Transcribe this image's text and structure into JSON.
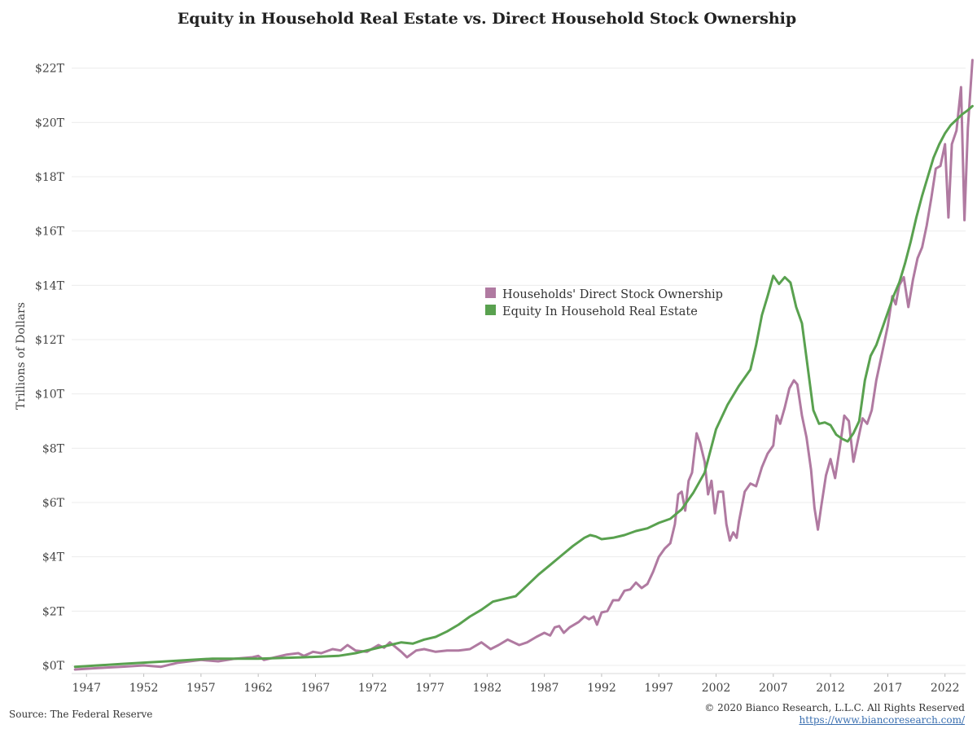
{
  "title": "Equity in Household Real Estate vs. Direct Household Stock Ownership",
  "source": "Source: The Federal Reserve",
  "copyright": "© 2020 Bianco Research, L.L.C. All Rights Reserved",
  "website": "https://www.biancoresearch.com/",
  "colors": {
    "stock": "#b07aa1",
    "real_estate": "#59a14f",
    "grid": "#ececec"
  },
  "chart_data": {
    "type": "line",
    "title": "Equity in Household Real Estate vs. Direct Household Stock Ownership",
    "xlabel": "",
    "ylabel": "Trillions of Dollars",
    "x_ticks": [
      1947,
      1952,
      1957,
      1962,
      1967,
      1972,
      1977,
      1982,
      1987,
      1992,
      1997,
      2002,
      2007,
      2012,
      2017,
      2022
    ],
    "y_ticks": [
      "$0T",
      "$2T",
      "$4T",
      "$6T",
      "$8T",
      "$10T",
      "$12T",
      "$14T",
      "$16T",
      "$18T",
      "$20T",
      "$22T"
    ],
    "xlim": [
      1945.7,
      2023.8
    ],
    "ylim": [
      -0.3,
      23.1
    ],
    "grid": "horizontal",
    "legend_position": "center",
    "series": [
      {
        "name": "Households' Direct Stock Ownership",
        "color": "#b07aa1",
        "points": [
          [
            1946.0,
            -0.15
          ],
          [
            1948.0,
            -0.1
          ],
          [
            1950.0,
            -0.05
          ],
          [
            1952.0,
            0.0
          ],
          [
            1953.5,
            -0.05
          ],
          [
            1955.0,
            0.1
          ],
          [
            1957.0,
            0.2
          ],
          [
            1958.5,
            0.15
          ],
          [
            1960.0,
            0.25
          ],
          [
            1961.5,
            0.3
          ],
          [
            1962.0,
            0.35
          ],
          [
            1962.5,
            0.2
          ],
          [
            1963.5,
            0.3
          ],
          [
            1964.5,
            0.4
          ],
          [
            1965.5,
            0.45
          ],
          [
            1966.0,
            0.35
          ],
          [
            1966.8,
            0.5
          ],
          [
            1967.5,
            0.45
          ],
          [
            1968.5,
            0.6
          ],
          [
            1969.2,
            0.55
          ],
          [
            1969.8,
            0.75
          ],
          [
            1970.5,
            0.55
          ],
          [
            1971.5,
            0.5
          ],
          [
            1972.5,
            0.75
          ],
          [
            1973.0,
            0.65
          ],
          [
            1973.5,
            0.85
          ],
          [
            1974.5,
            0.5
          ],
          [
            1975.0,
            0.3
          ],
          [
            1975.8,
            0.55
          ],
          [
            1976.5,
            0.6
          ],
          [
            1977.5,
            0.5
          ],
          [
            1978.5,
            0.55
          ],
          [
            1979.5,
            0.55
          ],
          [
            1980.5,
            0.6
          ],
          [
            1981.5,
            0.85
          ],
          [
            1982.3,
            0.6
          ],
          [
            1983.0,
            0.75
          ],
          [
            1983.8,
            0.95
          ],
          [
            1984.8,
            0.75
          ],
          [
            1985.5,
            0.85
          ],
          [
            1986.3,
            1.05
          ],
          [
            1987.0,
            1.2
          ],
          [
            1987.5,
            1.1
          ],
          [
            1987.9,
            1.4
          ],
          [
            1988.3,
            1.45
          ],
          [
            1988.7,
            1.2
          ],
          [
            1989.2,
            1.4
          ],
          [
            1990.0,
            1.6
          ],
          [
            1990.5,
            1.8
          ],
          [
            1990.9,
            1.7
          ],
          [
            1991.3,
            1.8
          ],
          [
            1991.6,
            1.5
          ],
          [
            1992.0,
            1.95
          ],
          [
            1992.5,
            2.0
          ],
          [
            1993.0,
            2.4
          ],
          [
            1993.5,
            2.4
          ],
          [
            1994.0,
            2.75
          ],
          [
            1994.5,
            2.8
          ],
          [
            1995.0,
            3.05
          ],
          [
            1995.5,
            2.85
          ],
          [
            1996.0,
            3.0
          ],
          [
            1996.5,
            3.45
          ],
          [
            1997.0,
            4.0
          ],
          [
            1997.5,
            4.3
          ],
          [
            1998.0,
            4.5
          ],
          [
            1998.4,
            5.2
          ],
          [
            1998.7,
            6.3
          ],
          [
            1999.0,
            6.4
          ],
          [
            1999.3,
            5.7
          ],
          [
            1999.6,
            6.8
          ],
          [
            1999.9,
            7.1
          ],
          [
            2000.3,
            8.55
          ],
          [
            2000.6,
            8.2
          ],
          [
            2001.0,
            7.5
          ],
          [
            2001.3,
            6.3
          ],
          [
            2001.6,
            6.8
          ],
          [
            2001.9,
            5.6
          ],
          [
            2002.2,
            6.4
          ],
          [
            2002.6,
            6.4
          ],
          [
            2002.9,
            5.2
          ],
          [
            2003.2,
            4.6
          ],
          [
            2003.5,
            4.9
          ],
          [
            2003.8,
            4.7
          ],
          [
            2004.0,
            5.3
          ],
          [
            2004.5,
            6.4
          ],
          [
            2005.0,
            6.7
          ],
          [
            2005.5,
            6.6
          ],
          [
            2006.0,
            7.3
          ],
          [
            2006.5,
            7.8
          ],
          [
            2007.0,
            8.1
          ],
          [
            2007.3,
            9.2
          ],
          [
            2007.6,
            8.9
          ],
          [
            2008.0,
            9.5
          ],
          [
            2008.4,
            10.2
          ],
          [
            2008.8,
            10.5
          ],
          [
            2009.1,
            10.35
          ],
          [
            2009.5,
            9.2
          ],
          [
            2009.9,
            8.4
          ],
          [
            2010.3,
            7.2
          ],
          [
            2010.6,
            5.8
          ],
          [
            2010.9,
            5.0
          ],
          [
            2011.2,
            5.9
          ],
          [
            2011.6,
            7.0
          ],
          [
            2012.0,
            7.6
          ],
          [
            2012.4,
            6.9
          ],
          [
            2012.8,
            8.0
          ],
          [
            2013.2,
            9.2
          ],
          [
            2013.6,
            9.0
          ],
          [
            2014.0,
            7.5
          ],
          [
            2014.4,
            8.3
          ],
          [
            2014.8,
            9.1
          ],
          [
            2015.2,
            8.9
          ],
          [
            2015.6,
            9.4
          ],
          [
            2016.0,
            10.5
          ],
          [
            2016.5,
            11.5
          ],
          [
            2017.0,
            12.5
          ],
          [
            2017.4,
            13.6
          ],
          [
            2017.7,
            13.3
          ],
          [
            2018.0,
            14.0
          ],
          [
            2018.4,
            14.3
          ],
          [
            2018.8,
            13.2
          ],
          [
            2019.2,
            14.2
          ],
          [
            2019.6,
            15.0
          ],
          [
            2020.0,
            15.4
          ],
          [
            2020.4,
            16.2
          ],
          [
            2020.8,
            17.2
          ],
          [
            2021.2,
            18.3
          ],
          [
            2021.6,
            18.4
          ],
          [
            2022.0,
            19.2
          ],
          [
            2022.3,
            16.5
          ],
          [
            2022.6,
            19.2
          ],
          [
            2023.0,
            19.7
          ],
          [
            2023.4,
            21.3
          ],
          [
            2023.7,
            16.4
          ],
          [
            2024.0,
            19.8
          ],
          [
            2024.4,
            22.3
          ]
        ]
      },
      {
        "name": "Equity In Household Real Estate",
        "color": "#59a14f",
        "points": [
          [
            1946.0,
            -0.05
          ],
          [
            1950.0,
            0.05
          ],
          [
            1954.0,
            0.15
          ],
          [
            1958.0,
            0.25
          ],
          [
            1962.0,
            0.25
          ],
          [
            1966.0,
            0.3
          ],
          [
            1969.0,
            0.35
          ],
          [
            1970.5,
            0.45
          ],
          [
            1972.0,
            0.6
          ],
          [
            1973.5,
            0.75
          ],
          [
            1974.5,
            0.85
          ],
          [
            1975.5,
            0.8
          ],
          [
            1976.5,
            0.95
          ],
          [
            1977.5,
            1.05
          ],
          [
            1978.5,
            1.25
          ],
          [
            1979.5,
            1.5
          ],
          [
            1980.5,
            1.8
          ],
          [
            1981.5,
            2.05
          ],
          [
            1982.5,
            2.35
          ],
          [
            1983.5,
            2.45
          ],
          [
            1984.5,
            2.55
          ],
          [
            1985.5,
            2.95
          ],
          [
            1986.5,
            3.35
          ],
          [
            1987.5,
            3.7
          ],
          [
            1988.5,
            4.05
          ],
          [
            1989.5,
            4.4
          ],
          [
            1990.5,
            4.7
          ],
          [
            1991.0,
            4.8
          ],
          [
            1991.5,
            4.75
          ],
          [
            1992.0,
            4.65
          ],
          [
            1993.0,
            4.7
          ],
          [
            1994.0,
            4.8
          ],
          [
            1995.0,
            4.95
          ],
          [
            1996.0,
            5.05
          ],
          [
            1997.0,
            5.25
          ],
          [
            1998.0,
            5.4
          ],
          [
            1999.0,
            5.75
          ],
          [
            2000.0,
            6.35
          ],
          [
            2001.0,
            7.1
          ],
          [
            2002.0,
            8.7
          ],
          [
            2003.0,
            9.6
          ],
          [
            2004.0,
            10.3
          ],
          [
            2005.0,
            10.9
          ],
          [
            2005.5,
            11.8
          ],
          [
            2006.0,
            12.9
          ],
          [
            2006.5,
            13.6
          ],
          [
            2007.0,
            14.35
          ],
          [
            2007.5,
            14.05
          ],
          [
            2008.0,
            14.3
          ],
          [
            2008.5,
            14.1
          ],
          [
            2009.0,
            13.2
          ],
          [
            2009.5,
            12.6
          ],
          [
            2010.0,
            11.0
          ],
          [
            2010.5,
            9.4
          ],
          [
            2011.0,
            8.9
          ],
          [
            2011.5,
            8.95
          ],
          [
            2012.0,
            8.85
          ],
          [
            2012.5,
            8.5
          ],
          [
            2013.0,
            8.35
          ],
          [
            2013.5,
            8.25
          ],
          [
            2014.0,
            8.55
          ],
          [
            2014.5,
            9.0
          ],
          [
            2015.0,
            10.5
          ],
          [
            2015.5,
            11.4
          ],
          [
            2016.0,
            11.8
          ],
          [
            2016.5,
            12.4
          ],
          [
            2017.0,
            13.0
          ],
          [
            2017.5,
            13.6
          ],
          [
            2018.0,
            14.1
          ],
          [
            2018.5,
            14.8
          ],
          [
            2019.0,
            15.6
          ],
          [
            2019.5,
            16.5
          ],
          [
            2020.0,
            17.3
          ],
          [
            2020.5,
            18.0
          ],
          [
            2021.0,
            18.7
          ],
          [
            2021.5,
            19.2
          ],
          [
            2022.0,
            19.6
          ],
          [
            2022.5,
            19.9
          ],
          [
            2023.0,
            20.1
          ],
          [
            2023.5,
            20.3
          ],
          [
            2024.0,
            20.45
          ],
          [
            2024.4,
            20.6
          ]
        ]
      }
    ]
  }
}
